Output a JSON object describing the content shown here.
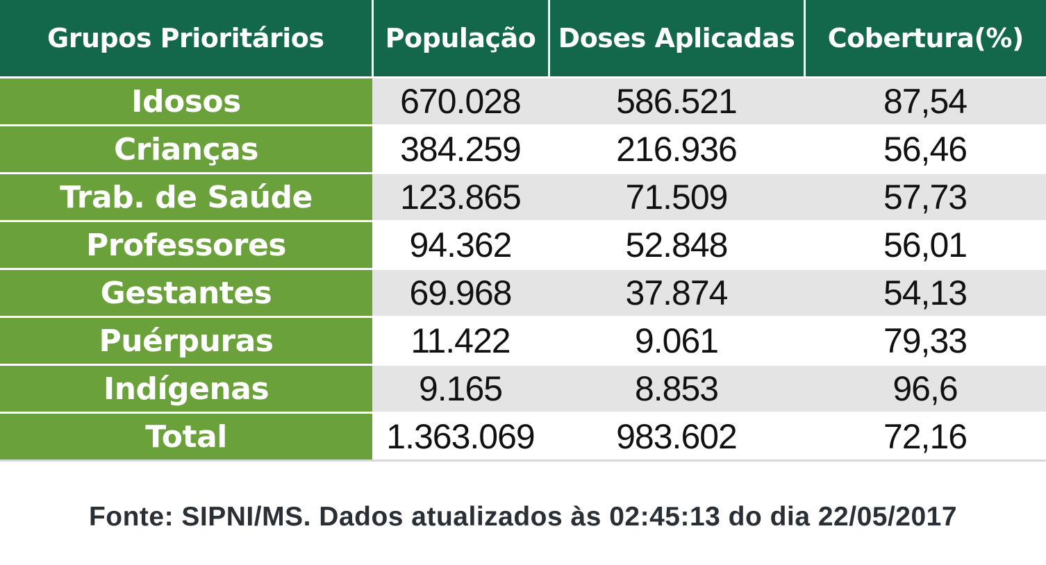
{
  "table": {
    "headers": [
      "Grupos Prioritários",
      "População",
      "Doses Aplicadas",
      "Cobertura(%)"
    ],
    "rows": [
      {
        "group": "Idosos",
        "population": "670.028",
        "doses": "586.521",
        "coverage": "87,54"
      },
      {
        "group": "Crianças",
        "population": "384.259",
        "doses": "216.936",
        "coverage": "56,46"
      },
      {
        "group": "Trab. de Saúde",
        "population": "123.865",
        "doses": "71.509",
        "coverage": "57,73"
      },
      {
        "group": "Professores",
        "population": "94.362",
        "doses": "52.848",
        "coverage": "56,01"
      },
      {
        "group": "Gestantes",
        "population": "69.968",
        "doses": "37.874",
        "coverage": "54,13"
      },
      {
        "group": "Puérpuras",
        "population": "11.422",
        "doses": "9.061",
        "coverage": "79,33"
      },
      {
        "group": "Indígenas",
        "population": "9.165",
        "doses": "8.853",
        "coverage": "96,6"
      },
      {
        "group": "Total",
        "population": "1.363.069",
        "doses": "983.602",
        "coverage": "72,16"
      }
    ]
  },
  "source": "Fonte: SIPNI/MS. Dados atualizados às 02:45:13 do dia 22/05/2017",
  "colors": {
    "header_bg": "#13674a",
    "group_bg": "#6aa13a",
    "row_shade": "#e4e4e4"
  }
}
